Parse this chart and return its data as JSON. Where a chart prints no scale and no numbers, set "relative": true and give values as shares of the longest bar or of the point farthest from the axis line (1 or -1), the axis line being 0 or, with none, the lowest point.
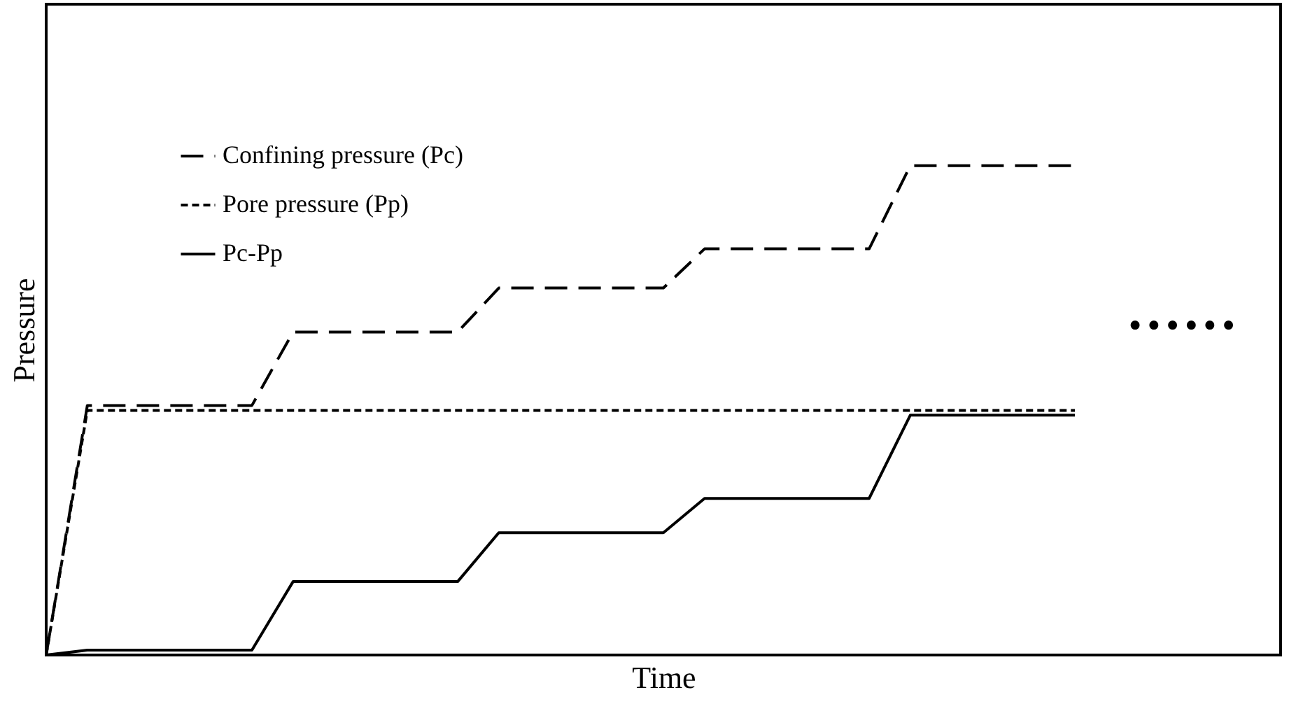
{
  "chart_data": {
    "type": "line",
    "xlabel": "Time",
    "ylabel": "Pressure",
    "relative": true,
    "legend": "top left",
    "grid": false,
    "tick_labels": false,
    "categories": [
      null,
      null,
      null,
      null,
      null,
      null,
      null,
      null,
      null,
      null,
      null,
      null,
      null,
      null,
      null,
      null,
      null,
      null,
      null,
      null,
      null,
      null,
      null,
      null,
      null,
      null,
      null,
      null,
      null,
      null,
      null
    ],
    "series": [
      {
        "name": "Confining pressure (Pc)",
        "color": "#000000",
        "line_style": "dashed",
        "values": [
          0,
          0.51,
          0.51,
          0.51,
          0.51,
          0.51,
          0.66,
          0.66,
          0.66,
          0.66,
          0.66,
          0.75,
          0.75,
          0.75,
          0.75,
          0.75,
          0.83,
          0.83,
          0.83,
          0.83,
          0.83,
          1,
          1,
          1,
          1,
          1,
          null,
          null,
          null,
          null,
          null
        ]
      },
      {
        "name": "Pore pressure (Pp)",
        "color": "#000000",
        "line_style": "dotted",
        "values": [
          0,
          0.5,
          0.5,
          0.5,
          0.5,
          0.5,
          0.5,
          0.5,
          0.5,
          0.5,
          0.5,
          0.5,
          0.5,
          0.5,
          0.5,
          0.5,
          0.5,
          0.5,
          0.5,
          0.5,
          0.5,
          0.5,
          0.5,
          0.5,
          0.5,
          0.5,
          null,
          null,
          null,
          null,
          null
        ]
      },
      {
        "name": "Pc-Pp",
        "color": "#000000",
        "line_style": "solid",
        "values": [
          0,
          0.01,
          0.01,
          0.01,
          0.01,
          0.01,
          0.15,
          0.15,
          0.15,
          0.15,
          0.15,
          0.25,
          0.25,
          0.25,
          0.25,
          0.25,
          0.32,
          0.32,
          0.32,
          0.32,
          0.32,
          0.49,
          0.49,
          0.49,
          0.49,
          0.49,
          null,
          null,
          null,
          null,
          null
        ]
      }
    ],
    "annotations": [
      "······"
    ]
  }
}
